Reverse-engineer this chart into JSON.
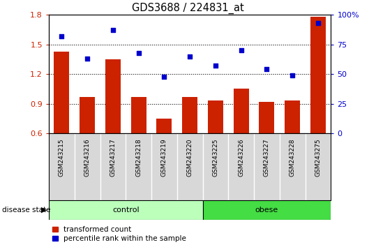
{
  "title": "GDS3688 / 224831_at",
  "samples": [
    "GSM243215",
    "GSM243216",
    "GSM243217",
    "GSM243218",
    "GSM243219",
    "GSM243220",
    "GSM243225",
    "GSM243226",
    "GSM243227",
    "GSM243228",
    "GSM243275"
  ],
  "transformed_count": [
    1.43,
    0.97,
    1.35,
    0.97,
    0.75,
    0.97,
    0.93,
    1.05,
    0.92,
    0.93,
    1.78
  ],
  "percentile_rank": [
    82,
    63,
    87,
    68,
    48,
    65,
    57,
    70,
    54,
    49,
    93
  ],
  "ylim_left": [
    0.6,
    1.8
  ],
  "ylim_right": [
    0,
    100
  ],
  "yticks_left": [
    0.6,
    0.9,
    1.2,
    1.5,
    1.8
  ],
  "yticks_right": [
    0,
    25,
    50,
    75,
    100
  ],
  "hgrid_vals": [
    0.9,
    1.2,
    1.5
  ],
  "bar_color": "#cc2200",
  "dot_color": "#0000cc",
  "control_color": "#bbffbb",
  "obese_color": "#44dd44",
  "control_indices": [
    0,
    1,
    2,
    3,
    4,
    5
  ],
  "obese_indices": [
    6,
    7,
    8,
    9,
    10
  ],
  "control_label": "control",
  "obese_label": "obese",
  "legend_bar_label": "transformed count",
  "legend_dot_label": "percentile rank within the sample",
  "disease_state_label": "disease state",
  "axis_label_color_left": "#cc2200",
  "axis_label_color_right": "#0000cc",
  "background_xtick": "#d8d8d8",
  "xtick_separator_color": "#ffffff"
}
